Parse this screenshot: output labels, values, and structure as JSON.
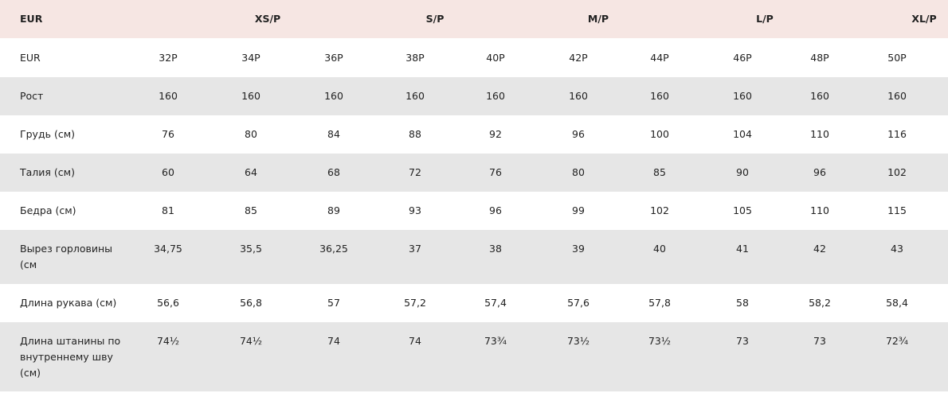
{
  "header": [
    "EUR",
    "XS/P",
    "S/P",
    "M/P",
    "L/P",
    "XL/P"
  ],
  "rows": [
    [
      "EUR",
      "32P",
      "34P",
      "36P",
      "38P",
      "40P",
      "42P",
      "44P",
      "46P",
      "48P",
      "50P"
    ],
    [
      "Рост",
      "160",
      "160",
      "160",
      "160",
      "160",
      "160",
      "160",
      "160",
      "160",
      "160"
    ],
    [
      "Грудь (см)",
      "76",
      "80",
      "84",
      "88",
      "92",
      "96",
      "100",
      "104",
      "110",
      "116"
    ],
    [
      "Талия (см)",
      "60",
      "64",
      "68",
      "72",
      "76",
      "80",
      "85",
      "90",
      "96",
      "102"
    ],
    [
      "Бедра (см)",
      "81",
      "85",
      "89",
      "93",
      "96",
      "99",
      "102",
      "105",
      "110",
      "115"
    ],
    [
      "Вырез горловины (см",
      "34,75",
      "35,5",
      "36,25",
      "37",
      "38",
      "39",
      "40",
      "41",
      "42",
      "43"
    ],
    [
      "Длина рукава (см)",
      "56,6",
      "56,8",
      "57",
      "57,2",
      "57,4",
      "57,6",
      "57,8",
      "58",
      "58,2",
      "58,4"
    ],
    [
      "Длина штанины по внутреннему шву (см)",
      "74½",
      "74½",
      "74",
      "74",
      "73¾",
      "73½",
      "73½",
      "73",
      "73",
      "72¾"
    ]
  ]
}
